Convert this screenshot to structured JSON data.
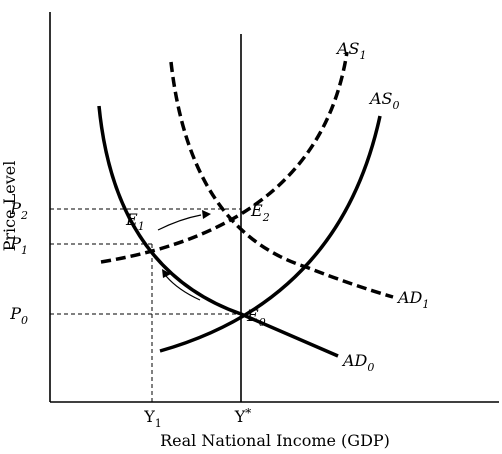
{
  "axes": {
    "y_label": "Price Level",
    "x_label": "Real National Income (GDP)"
  },
  "price_ticks": [
    {
      "letter": "P",
      "sub": "2"
    },
    {
      "letter": "P",
      "sub": "1"
    },
    {
      "letter": "P",
      "sub": "0"
    }
  ],
  "income_ticks": [
    {
      "letter": "Y",
      "sub": "1"
    },
    {
      "letter": "Y",
      "sup": "*"
    }
  ],
  "curves": {
    "as0": {
      "letter": "AS",
      "sub": "0",
      "style": "solid"
    },
    "as1": {
      "letter": "AS",
      "sub": "1",
      "style": "dashed"
    },
    "ad0": {
      "letter": "AD",
      "sub": "0",
      "style": "solid"
    },
    "ad1": {
      "letter": "AD",
      "sub": "1",
      "style": "dashed"
    },
    "lras": {
      "style": "vertical line at Y*"
    }
  },
  "points": {
    "e0": {
      "letter": "E",
      "sub": "0"
    },
    "e1": {
      "letter": "E",
      "sub": "1"
    },
    "e2": {
      "letter": "E",
      "sub": "2"
    }
  }
}
